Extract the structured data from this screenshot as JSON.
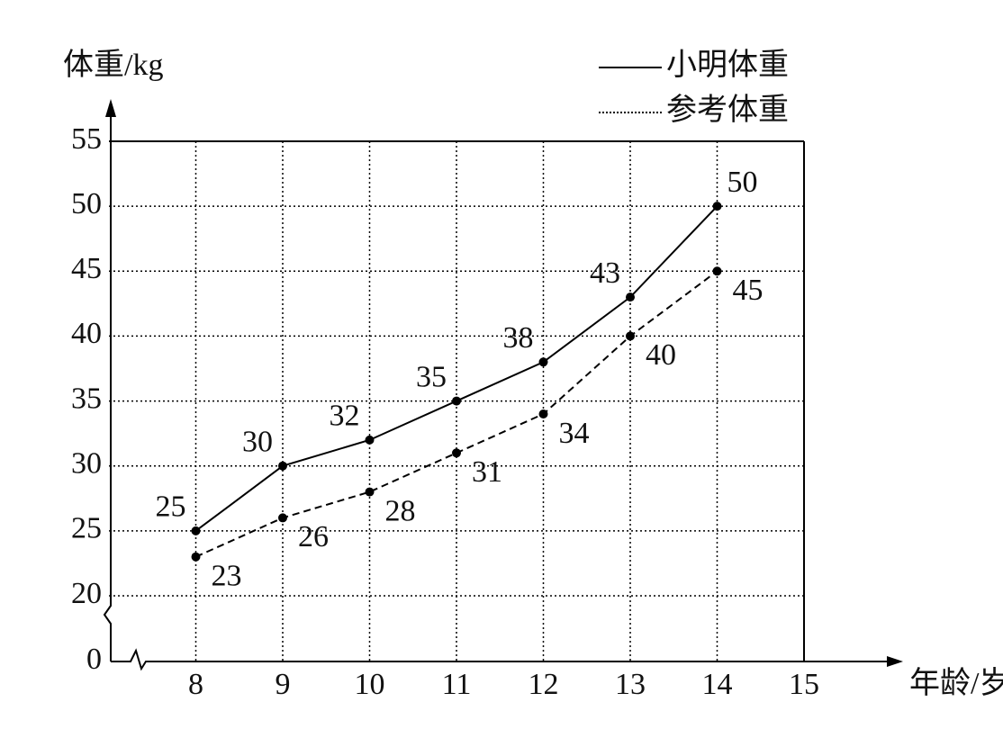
{
  "chart_data": {
    "type": "line",
    "ylabel": "体重/kg",
    "xlabel": "年龄/岁",
    "x": [
      8,
      9,
      10,
      11,
      12,
      13,
      14
    ],
    "series": [
      {
        "name": "小明体重",
        "color": "#000000",
        "style": "solid",
        "values": [
          25,
          30,
          32,
          35,
          38,
          43,
          50
        ]
      },
      {
        "name": "参考体重",
        "color": "#000000",
        "style": "dashed",
        "values": [
          23,
          26,
          28,
          31,
          34,
          40,
          45
        ]
      }
    ],
    "xlim": [
      7,
      15
    ],
    "xticks": [
      8,
      9,
      10,
      11,
      12,
      13,
      14,
      15
    ],
    "ylim": [
      20,
      55
    ],
    "yticks": [
      20,
      25,
      30,
      35,
      40,
      45,
      50,
      55
    ],
    "y_origin_tick": 0,
    "axis_break": true,
    "grid": "dotted",
    "legend": "upper right"
  }
}
